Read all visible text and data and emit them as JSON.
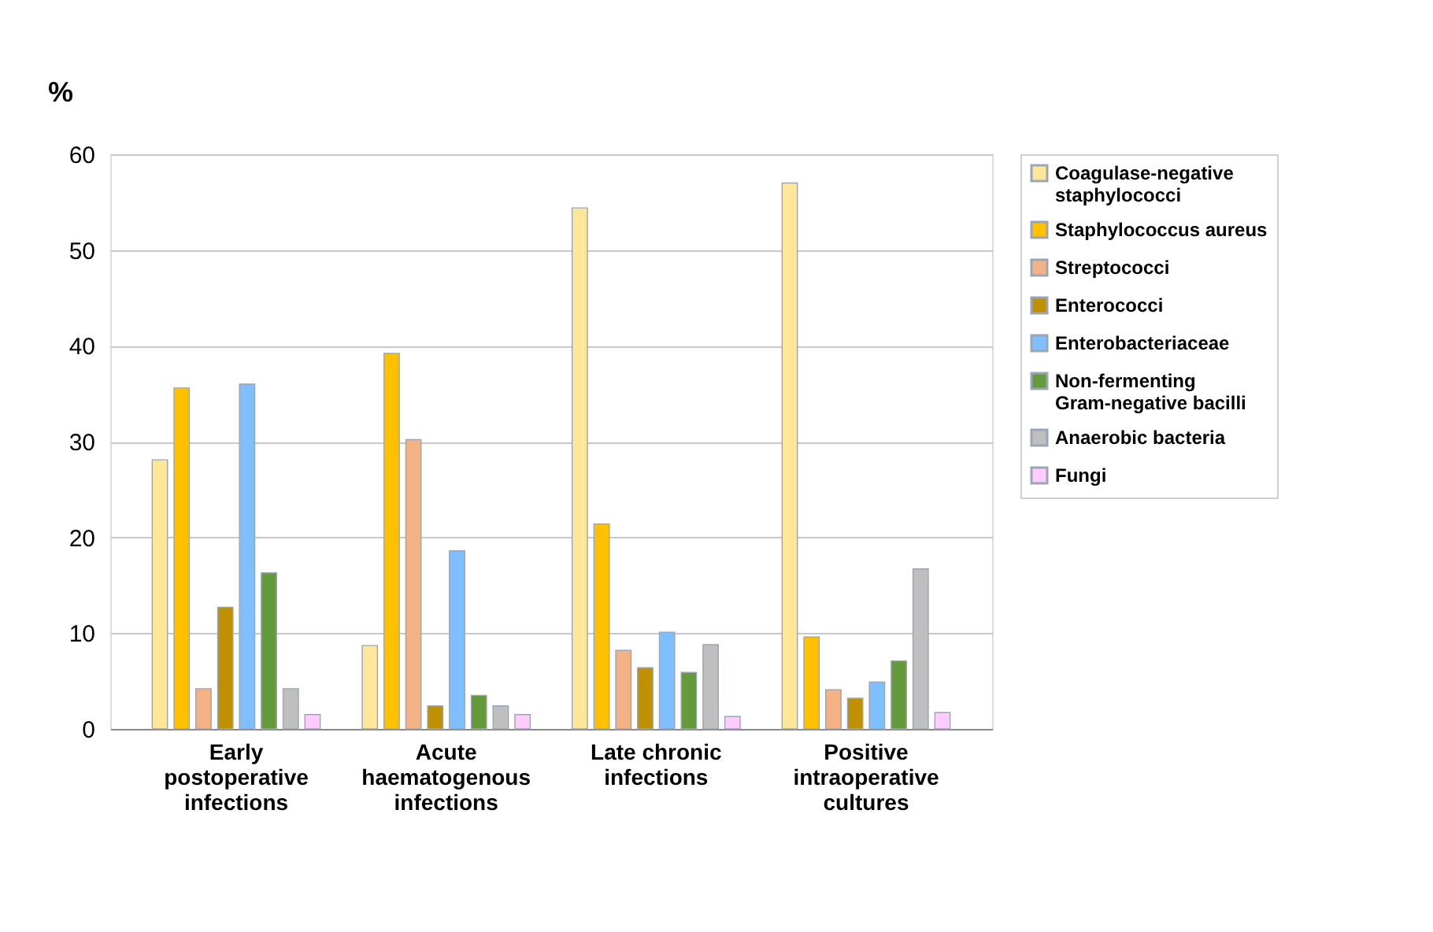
{
  "chart_data": {
    "type": "bar",
    "ylabel": "%",
    "categories": [
      "Early postoperative infections",
      "Acute haematogenous infections",
      "Late chronic infections",
      "Positive intraoperative cultures"
    ],
    "series": [
      {
        "name": "Coagulase-negative staphylococci",
        "color": "#ffe699",
        "values": [
          28.1,
          8.7,
          54.4,
          57.0
        ]
      },
      {
        "name": "Staphylococcus aureus",
        "color": "#ffc000",
        "values": [
          35.6,
          39.2,
          21.4,
          9.6
        ]
      },
      {
        "name": "Streptococci",
        "color": "#f4b183",
        "values": [
          4.2,
          30.2,
          8.2,
          4.1
        ]
      },
      {
        "name": "Enterococci",
        "color": "#bf9000",
        "values": [
          12.7,
          2.4,
          6.4,
          3.2
        ]
      },
      {
        "name": "Enterobacteriaceae",
        "color": "#7fbfff",
        "values": [
          36.0,
          18.6,
          10.1,
          4.9
        ]
      },
      {
        "name": "Non-fermenting Gram-negative bacilli",
        "color": "#639a3a",
        "values": [
          16.3,
          3.5,
          5.9,
          7.1
        ]
      },
      {
        "name": "Anaerobic bacteria",
        "color": "#bfbfbf",
        "values": [
          4.2,
          2.4,
          8.8,
          16.7
        ]
      },
      {
        "name": "Fungi",
        "color": "#ffccff",
        "values": [
          1.5,
          1.5,
          1.3,
          1.7
        ]
      }
    ],
    "ylim": [
      0,
      60
    ],
    "yticks": [
      0,
      10,
      20,
      30,
      40,
      50,
      60
    ],
    "grid": "y",
    "legend": "right"
  }
}
